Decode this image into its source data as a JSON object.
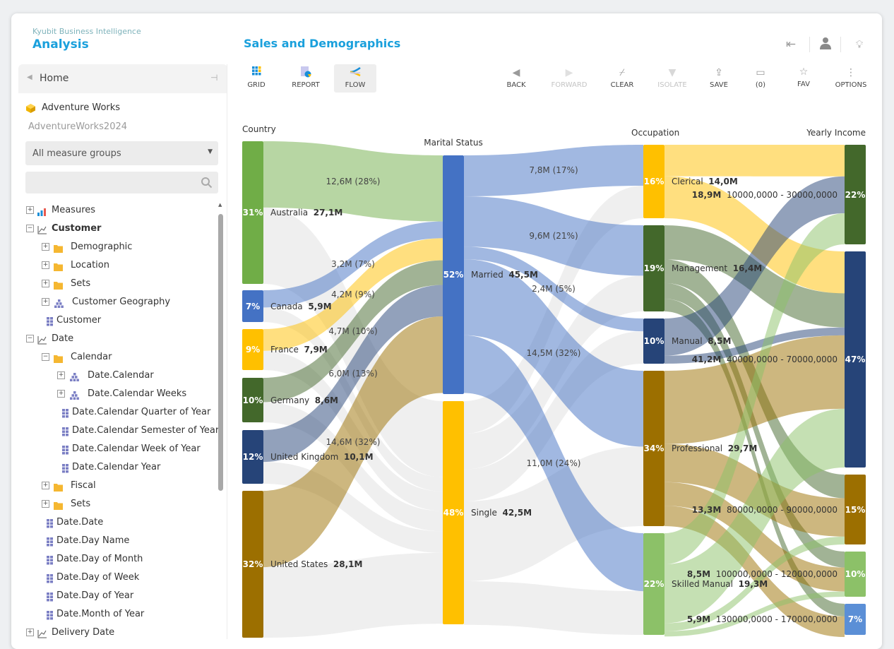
{
  "app": {
    "vendor": "Kyubit Business Intelligence",
    "section": "Analysis",
    "report_title": "Sales and Demographics"
  },
  "header_icons": [
    "exit-icon",
    "user-icon",
    "lightbulb-icon"
  ],
  "sidebar": {
    "home_label": "Home",
    "cube_name": "Adventure Works",
    "database": "AdventureWorks2024",
    "measure_group_select": "All measure groups",
    "search_placeholder": "",
    "tree": [
      {
        "label": "Measures",
        "level": 0,
        "exp": "+",
        "icon": "measures",
        "bold": false
      },
      {
        "label": "Customer",
        "level": 0,
        "exp": "-",
        "icon": "dimension",
        "bold": true
      },
      {
        "label": "Demographic",
        "level": 1,
        "exp": "+",
        "icon": "folder"
      },
      {
        "label": "Location",
        "level": 1,
        "exp": "+",
        "icon": "folder"
      },
      {
        "label": "Sets",
        "level": 1,
        "exp": "+",
        "icon": "folder"
      },
      {
        "label": "Customer Geography",
        "level": 1,
        "exp": "+",
        "icon": "hierarchy"
      },
      {
        "label": "Customer",
        "level": 1,
        "exp": "",
        "icon": "attribute"
      },
      {
        "label": "Date",
        "level": 0,
        "exp": "-",
        "icon": "dimension"
      },
      {
        "label": "Calendar",
        "level": 1,
        "exp": "-",
        "icon": "folder"
      },
      {
        "label": "Date.Calendar",
        "level": 2,
        "exp": "+",
        "icon": "hierarchy"
      },
      {
        "label": "Date.Calendar Weeks",
        "level": 2,
        "exp": "+",
        "icon": "hierarchy"
      },
      {
        "label": "Date.Calendar Quarter of Year",
        "level": 2,
        "exp": "",
        "icon": "attribute"
      },
      {
        "label": "Date.Calendar Semester of Year",
        "level": 2,
        "exp": "",
        "icon": "attribute"
      },
      {
        "label": "Date.Calendar Week of Year",
        "level": 2,
        "exp": "",
        "icon": "attribute"
      },
      {
        "label": "Date.Calendar Year",
        "level": 2,
        "exp": "",
        "icon": "attribute"
      },
      {
        "label": "Fiscal",
        "level": 1,
        "exp": "+",
        "icon": "folder"
      },
      {
        "label": "Sets",
        "level": 1,
        "exp": "+",
        "icon": "folder"
      },
      {
        "label": "Date.Date",
        "level": 1,
        "exp": "",
        "icon": "attribute"
      },
      {
        "label": "Date.Day Name",
        "level": 1,
        "exp": "",
        "icon": "attribute"
      },
      {
        "label": "Date.Day of Month",
        "level": 1,
        "exp": "",
        "icon": "attribute"
      },
      {
        "label": "Date.Day of Week",
        "level": 1,
        "exp": "",
        "icon": "attribute"
      },
      {
        "label": "Date.Day of Year",
        "level": 1,
        "exp": "",
        "icon": "attribute"
      },
      {
        "label": "Date.Month of Year",
        "level": 1,
        "exp": "",
        "icon": "attribute"
      },
      {
        "label": "Delivery Date",
        "level": 0,
        "exp": "+",
        "icon": "dimension"
      }
    ]
  },
  "view_tabs": [
    {
      "label": "GRID",
      "icon": "grid-icon",
      "active": false
    },
    {
      "label": "REPORT",
      "icon": "report-icon",
      "active": false
    },
    {
      "label": "FLOW",
      "icon": "flow-icon",
      "active": true
    }
  ],
  "toolbar": [
    {
      "label": "BACK",
      "icon": "back-icon",
      "enabled": true
    },
    {
      "label": "FORWARD",
      "icon": "forward-icon",
      "enabled": false
    },
    {
      "label": "CLEAR",
      "icon": "broom-icon",
      "enabled": true
    },
    {
      "label": "ISOLATE",
      "icon": "filter-icon",
      "enabled": false
    },
    {
      "label": "SAVE",
      "icon": "upload-icon",
      "enabled": true
    },
    {
      "label": "(0)",
      "icon": "comment-icon",
      "enabled": true
    },
    {
      "label": "FAV",
      "icon": "star-icon",
      "enabled": true
    },
    {
      "label": "OPTIONS",
      "icon": "more-vertical-icon",
      "enabled": true
    }
  ],
  "chart_data": {
    "type": "sankey",
    "columns": [
      {
        "title": "Country",
        "nodes": [
          {
            "label": "Australia",
            "value_label": "27,1M",
            "value": 27.1,
            "pct": "31%",
            "color": "#70ad47"
          },
          {
            "label": "Canada",
            "value_label": "5,9M",
            "value": 5.9,
            "pct": "7%",
            "color": "#4472c4"
          },
          {
            "label": "France",
            "value_label": "7,9M",
            "value": 7.9,
            "pct": "9%",
            "color": "#ffc000"
          },
          {
            "label": "Germany",
            "value_label": "8,6M",
            "value": 8.6,
            "pct": "10%",
            "color": "#43682b"
          },
          {
            "label": "United Kingdom",
            "value_label": "10,1M",
            "value": 10.1,
            "pct": "12%",
            "color": "#264478"
          },
          {
            "label": "United States",
            "value_label": "28,1M",
            "value": 28.1,
            "pct": "32%",
            "color": "#9c6f00"
          }
        ]
      },
      {
        "title": "Marital Status",
        "nodes": [
          {
            "label": "Married",
            "value_label": "45,5M",
            "value": 45.5,
            "pct": "52%",
            "color": "#4472c4"
          },
          {
            "label": "Single",
            "value_label": "42,5M",
            "value": 42.5,
            "pct": "48%",
            "color": "#ffc000"
          }
        ]
      },
      {
        "title": "Occupation",
        "nodes": [
          {
            "label": "Clerical",
            "value_label": "14,0M",
            "value": 14.0,
            "pct": "16%",
            "color": "#ffc000"
          },
          {
            "label": "Management",
            "value_label": "16,4M",
            "value": 16.4,
            "pct": "19%",
            "color": "#43682b"
          },
          {
            "label": "Manual",
            "value_label": "8,5M",
            "value": 8.5,
            "pct": "10%",
            "color": "#264478"
          },
          {
            "label": "Professional",
            "value_label": "29,7M",
            "value": 29.7,
            "pct": "34%",
            "color": "#9c6f00"
          },
          {
            "label": "Skilled Manual",
            "value_label": "19,3M",
            "value": 19.3,
            "pct": "22%",
            "color": "#8cc168"
          }
        ]
      },
      {
        "title": "Yearly Income",
        "nodes": [
          {
            "label": "10000,0000 - 30000,0000",
            "value_label": "18,9M",
            "value": 18.9,
            "pct": "22%",
            "color": "#43682b"
          },
          {
            "label": "40000,0000 - 70000,0000",
            "value_label": "41,2M",
            "value": 41.2,
            "pct": "47%",
            "color": "#264478"
          },
          {
            "label": "80000,0000 - 90000,0000",
            "value_label": "13,3M",
            "value": 13.3,
            "pct": "15%",
            "color": "#9c6f00"
          },
          {
            "label": "100000,0000 - 120000,0000",
            "value_label": "8,5M",
            "value": 8.5,
            "pct": "10%",
            "color": "#8cc168"
          },
          {
            "label": "130000,0000 - 170000,0000",
            "value_label": "5,9M",
            "value": 5.9,
            "pct": "7%",
            "color": "#5b8fd6"
          }
        ]
      }
    ],
    "links": [
      {
        "from": [
          0,
          0
        ],
        "to": [
          1,
          0
        ],
        "value": 12.6,
        "label": "12,6M (28%)",
        "highlighted": true
      },
      {
        "from": [
          0,
          0
        ],
        "to": [
          1,
          1
        ],
        "value": 14.5,
        "highlighted": false
      },
      {
        "from": [
          0,
          1
        ],
        "to": [
          1,
          0
        ],
        "value": 3.2,
        "label": "3,2M (7%)",
        "highlighted": true
      },
      {
        "from": [
          0,
          1
        ],
        "to": [
          1,
          1
        ],
        "value": 2.7,
        "highlighted": false
      },
      {
        "from": [
          0,
          2
        ],
        "to": [
          1,
          0
        ],
        "value": 4.2,
        "label": "4,2M (9%)",
        "highlighted": true
      },
      {
        "from": [
          0,
          2
        ],
        "to": [
          1,
          1
        ],
        "value": 3.7,
        "highlighted": false
      },
      {
        "from": [
          0,
          3
        ],
        "to": [
          1,
          0
        ],
        "value": 4.7,
        "label": "4,7M (10%)",
        "highlighted": true
      },
      {
        "from": [
          0,
          3
        ],
        "to": [
          1,
          1
        ],
        "value": 3.9,
        "highlighted": false
      },
      {
        "from": [
          0,
          4
        ],
        "to": [
          1,
          0
        ],
        "value": 6.0,
        "label": "6,0M (13%)",
        "highlighted": true
      },
      {
        "from": [
          0,
          4
        ],
        "to": [
          1,
          1
        ],
        "value": 4.1,
        "highlighted": false
      },
      {
        "from": [
          0,
          5
        ],
        "to": [
          1,
          0
        ],
        "value": 14.6,
        "label": "14,6M (32%)",
        "highlighted": true
      },
      {
        "from": [
          0,
          5
        ],
        "to": [
          1,
          1
        ],
        "value": 13.5,
        "highlighted": false
      },
      {
        "from": [
          1,
          0
        ],
        "to": [
          2,
          0
        ],
        "value": 7.8,
        "label": "7,8M (17%)",
        "highlighted": true
      },
      {
        "from": [
          1,
          0
        ],
        "to": [
          2,
          1
        ],
        "value": 9.6,
        "label": "9,6M (21%)",
        "highlighted": true
      },
      {
        "from": [
          1,
          0
        ],
        "to": [
          2,
          2
        ],
        "value": 2.4,
        "label": "2,4M (5%)",
        "highlighted": true
      },
      {
        "from": [
          1,
          0
        ],
        "to": [
          2,
          3
        ],
        "value": 14.5,
        "label": "14,5M (32%)",
        "highlighted": true
      },
      {
        "from": [
          1,
          0
        ],
        "to": [
          2,
          4
        ],
        "value": 11.0,
        "label": "11,0M (24%)",
        "highlighted": true
      },
      {
        "from": [
          1,
          1
        ],
        "to": [
          2,
          0
        ],
        "value": 6.2,
        "highlighted": false
      },
      {
        "from": [
          1,
          1
        ],
        "to": [
          2,
          1
        ],
        "value": 6.8,
        "highlighted": false
      },
      {
        "from": [
          1,
          1
        ],
        "to": [
          2,
          2
        ],
        "value": 6.1,
        "highlighted": false
      },
      {
        "from": [
          1,
          1
        ],
        "to": [
          2,
          3
        ],
        "value": 15.2,
        "highlighted": false
      },
      {
        "from": [
          1,
          1
        ],
        "to": [
          2,
          4
        ],
        "value": 8.3,
        "highlighted": false
      },
      {
        "from": [
          2,
          0
        ],
        "to": [
          3,
          0
        ],
        "value": 6.0,
        "highlighted": true
      },
      {
        "from": [
          2,
          0
        ],
        "to": [
          3,
          1
        ],
        "value": 8.0,
        "highlighted": true
      },
      {
        "from": [
          2,
          1
        ],
        "to": [
          3,
          1
        ],
        "value": 6.5,
        "highlighted": true
      },
      {
        "from": [
          2,
          1
        ],
        "to": [
          3,
          2
        ],
        "value": 4.5,
        "highlighted": true
      },
      {
        "from": [
          2,
          1
        ],
        "to": [
          3,
          3
        ],
        "value": 3.0,
        "highlighted": true
      },
      {
        "from": [
          2,
          1
        ],
        "to": [
          3,
          4
        ],
        "value": 2.4,
        "highlighted": true
      },
      {
        "from": [
          2,
          2
        ],
        "to": [
          3,
          0
        ],
        "value": 7.0,
        "highlighted": true
      },
      {
        "from": [
          2,
          2
        ],
        "to": [
          3,
          1
        ],
        "value": 1.5,
        "highlighted": true
      },
      {
        "from": [
          2,
          3
        ],
        "to": [
          3,
          1
        ],
        "value": 14.0,
        "highlighted": true
      },
      {
        "from": [
          2,
          3
        ],
        "to": [
          3,
          2
        ],
        "value": 7.3,
        "highlighted": true
      },
      {
        "from": [
          2,
          3
        ],
        "to": [
          3,
          3
        ],
        "value": 4.5,
        "highlighted": true
      },
      {
        "from": [
          2,
          3
        ],
        "to": [
          3,
          4
        ],
        "value": 3.9,
        "highlighted": true
      },
      {
        "from": [
          2,
          4
        ],
        "to": [
          3,
          0
        ],
        "value": 5.9,
        "highlighted": true
      },
      {
        "from": [
          2,
          4
        ],
        "to": [
          3,
          1
        ],
        "value": 11.2,
        "highlighted": true
      },
      {
        "from": [
          2,
          4
        ],
        "to": [
          3,
          2
        ],
        "value": 1.5,
        "highlighted": true
      },
      {
        "from": [
          2,
          4
        ],
        "to": [
          3,
          3
        ],
        "value": 1.0,
        "highlighted": true
      }
    ],
    "inactive_link_color": "#efefef"
  }
}
